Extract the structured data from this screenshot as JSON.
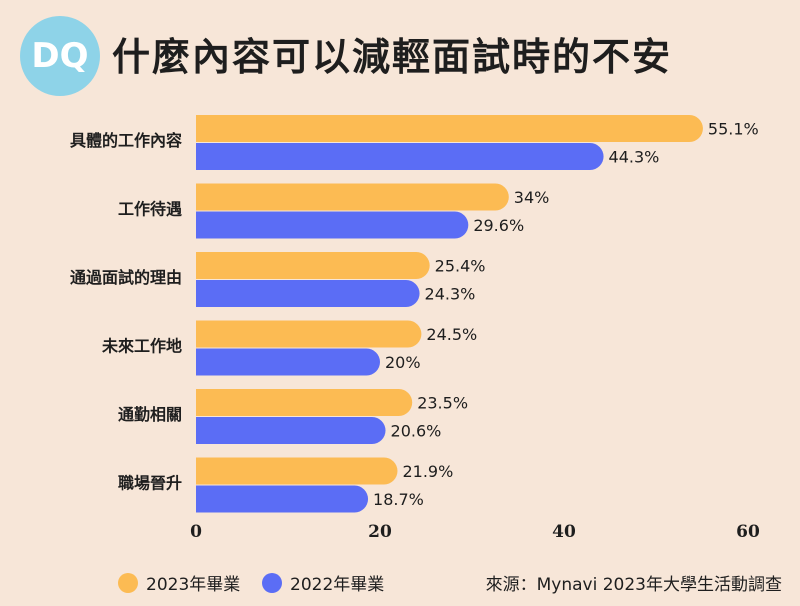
{
  "header": {
    "logo_text": "DQ",
    "title": "什麼內容可以減輕面試時的不安"
  },
  "colors": {
    "background": "#f7e6d8",
    "series_2023": "#fcbb53",
    "series_2022": "#5b6df5",
    "logo": "#8ed3e8"
  },
  "legend": {
    "items": [
      {
        "label": "2023年畢業",
        "color": "#fcbb53"
      },
      {
        "label": "2022年畢業",
        "color": "#5b6df5"
      }
    ],
    "source": "來源：Mynavi  2023年大學生活動調查"
  },
  "chart_data": {
    "type": "bar",
    "orientation": "horizontal",
    "categories": [
      "具體的工作內容",
      "工作待遇",
      "通過面試的理由",
      "未來工作地",
      "通勤相關",
      "職場晉升"
    ],
    "series": [
      {
        "name": "2023年畢業",
        "values": [
          55.1,
          34,
          25.4,
          24.5,
          23.5,
          21.9
        ],
        "labels": [
          "55.1%",
          "34%",
          "25.4%",
          "24.5%",
          "23.5%",
          "21.9%"
        ]
      },
      {
        "name": "2022年畢業",
        "values": [
          44.3,
          29.6,
          24.3,
          20,
          20.6,
          18.7
        ],
        "labels": [
          "44.3%",
          "29.6%",
          "24.3%",
          "20%",
          "20.6%",
          "18.7%"
        ]
      }
    ],
    "xlim": [
      0,
      60
    ],
    "xticks": [
      "0",
      "20",
      "40",
      "60"
    ],
    "grid": false,
    "legend_position": "bottom"
  }
}
